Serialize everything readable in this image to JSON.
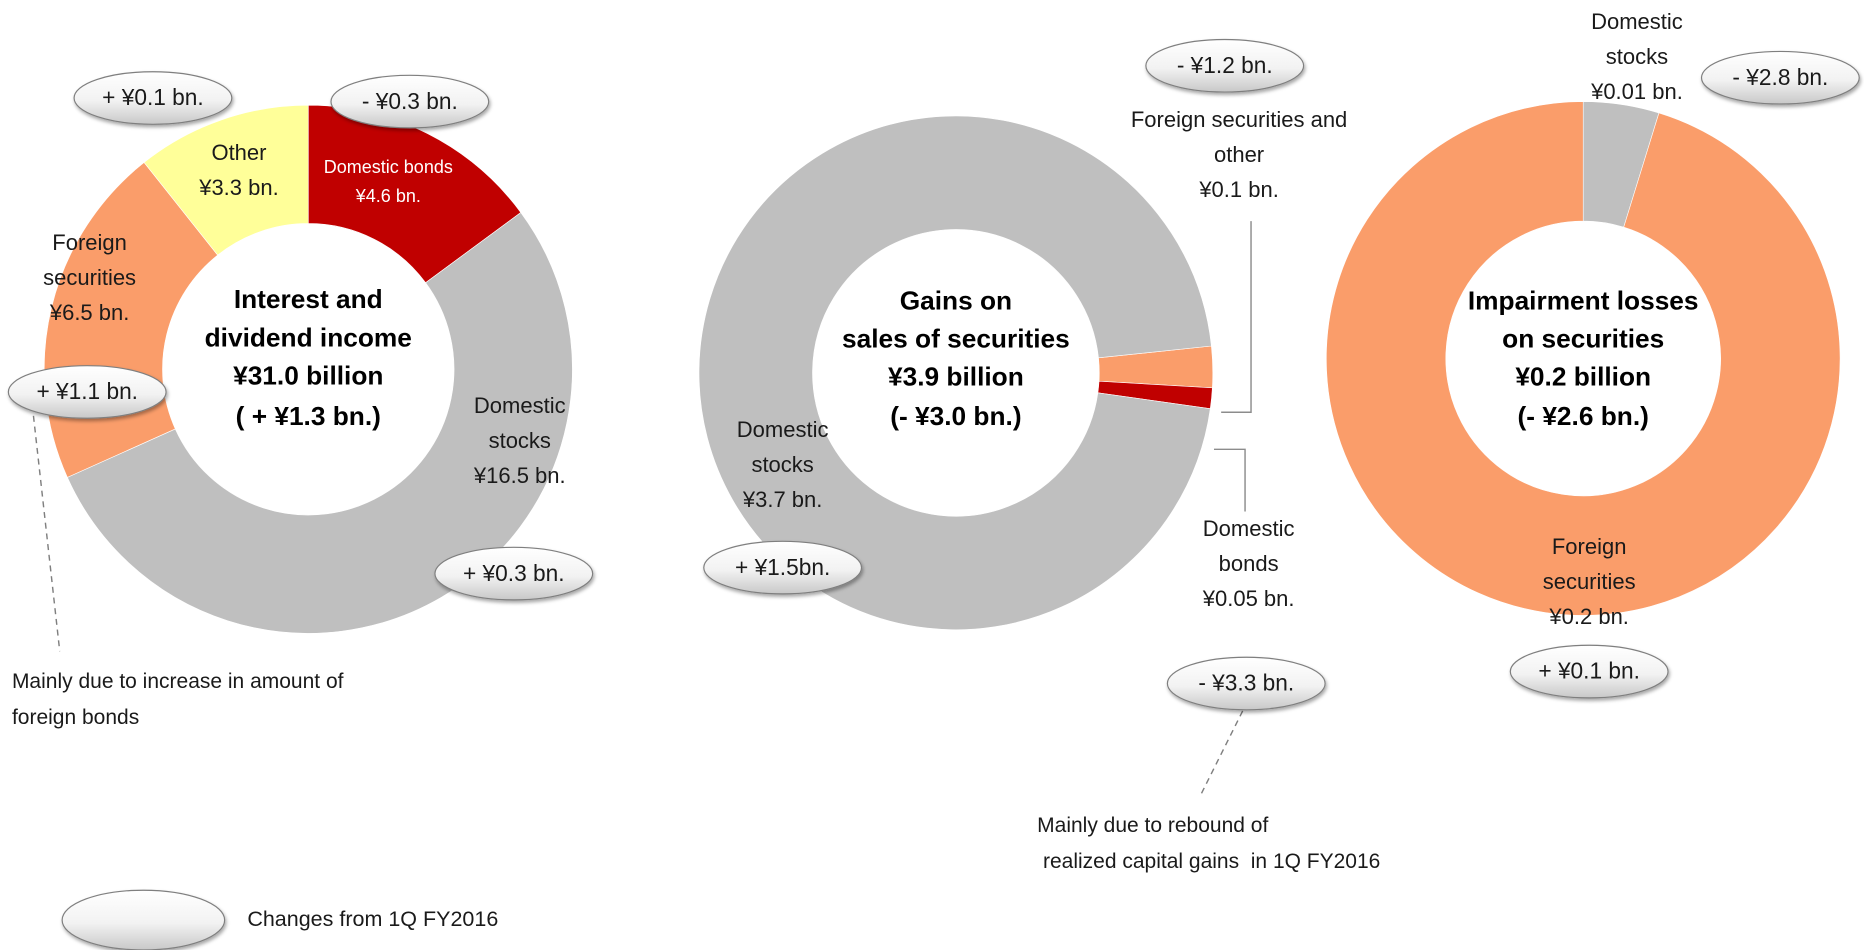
{
  "chart_data": [
    {
      "type": "donut",
      "title": [
        "Interest and",
        "dividend income",
        "¥31.0 billion",
        "( + ¥1.3 bn.)"
      ],
      "categories": [
        "Domestic bonds",
        "Domestic stocks",
        "Foreign securities",
        "Other"
      ],
      "values": [
        4.6,
        16.5,
        6.5,
        3.3
      ],
      "value_labels": [
        "¥4.6 bn.",
        "¥16.5 bn.",
        "¥6.5 bn.",
        "¥3.3 bn."
      ],
      "colors": [
        "#c00000",
        "#bfbfbf",
        "#fa9d6a",
        "#ffff99"
      ],
      "change_labels": [
        "- ¥0.3 bn.",
        "+ ¥0.3 bn.",
        "+ ¥1.1 bn.",
        "+ ¥0.1 bn."
      ],
      "annotation": [
        "Mainly due to increase in amount of",
        "foreign bonds"
      ]
    },
    {
      "type": "donut",
      "title": [
        "Gains on",
        "sales of securities",
        "¥3.9 billion",
        "(- ¥3.0 bn.)"
      ],
      "categories": [
        "Foreign securities and other",
        "Domestic bonds",
        "Domestic stocks"
      ],
      "values": [
        0.1,
        0.05,
        3.7
      ],
      "value_labels": [
        "¥0.1 bn.",
        "¥0.05 bn.",
        "¥3.7 bn."
      ],
      "colors": [
        "#fa9d6a",
        "#c00000",
        "#bfbfbf"
      ],
      "change_labels": [
        "- ¥1.2 bn.",
        "- ¥3.3 bn.",
        "+ ¥1.5bn."
      ],
      "annotation": [
        "Mainly due to rebound of",
        " realized capital gains  in 1Q FY2016"
      ]
    },
    {
      "type": "donut",
      "title": [
        "Impairment losses",
        "on securities",
        "¥0.2 billion",
        "(- ¥2.6 bn.)"
      ],
      "categories": [
        "Domestic stocks",
        "Foreign securities"
      ],
      "values": [
        0.01,
        0.2
      ],
      "value_labels": [
        "¥0.01 bn.",
        "¥0.2 bn."
      ],
      "colors": [
        "#bfbfbf",
        "#fa9d6a"
      ],
      "change_labels": [
        "- ¥2.8 bn.",
        "+ ¥0.1 bn."
      ]
    }
  ],
  "legend": {
    "label": "Changes from 1Q FY2016"
  }
}
